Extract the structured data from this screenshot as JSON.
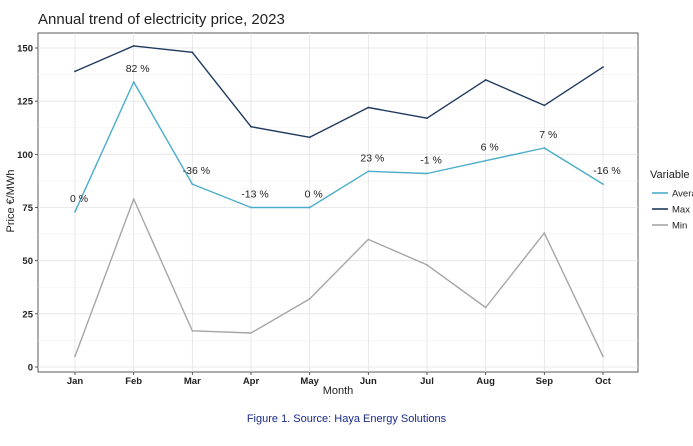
{
  "chart_data": {
    "type": "line",
    "title": "Annual trend of electricity price, 2023",
    "xlabel": "Month",
    "ylabel": "Price €/MWh",
    "categories": [
      "Jan",
      "Feb",
      "Mar",
      "Apr",
      "May",
      "Jun",
      "Jul",
      "Aug",
      "Sep",
      "Oct"
    ],
    "ylim": [
      0,
      160
    ],
    "yticks": [
      0,
      25,
      50,
      75,
      100,
      125,
      150
    ],
    "grid": true,
    "legend_title": "Variable",
    "legend_position": "right",
    "series": [
      {
        "name": "Average",
        "color": "#4badc9",
        "values": [
          73,
          134,
          86,
          75,
          75,
          92,
          91,
          97,
          103,
          86
        ],
        "labels": [
          "0 %",
          "82 %",
          "-36 %",
          "-13 %",
          "0 %",
          "23 %",
          "-1 %",
          "6 %",
          "7 %",
          "-16 %"
        ]
      },
      {
        "name": "Max",
        "color": "#1f3a5f",
        "values": [
          139,
          151,
          148,
          113,
          108,
          122,
          117,
          135,
          123,
          141
        ]
      },
      {
        "name": "Min",
        "color": "#a6a6a6",
        "values": [
          5,
          79,
          17,
          16,
          32,
          60,
          48,
          28,
          63,
          5
        ]
      }
    ]
  },
  "caption": "Figure 1. Source: Haya Energy Solutions"
}
